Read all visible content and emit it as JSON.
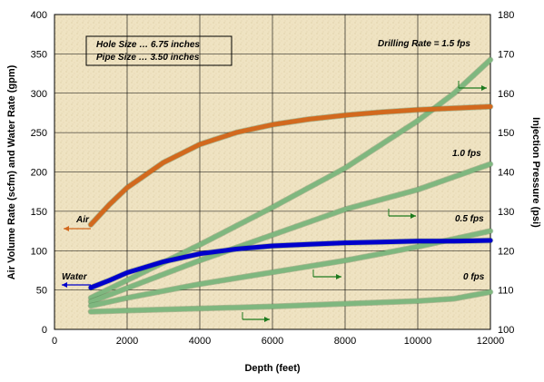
{
  "chart_data": {
    "type": "line",
    "xlabel": "Depth (feet)",
    "ylabel_left": "Air Volume Rate (scfm) and Water Rate (gpm)",
    "ylabel_right": "Injection Pressure (psi)",
    "xlim": [
      0,
      12000
    ],
    "ylim_left": [
      0,
      400
    ],
    "ylim_right": [
      100,
      180
    ],
    "x_ticks": [
      "0",
      "2000",
      "4000",
      "6000",
      "8000",
      "10000",
      "12000"
    ],
    "y_ticks_left": [
      "0",
      "50",
      "100",
      "150",
      "200",
      "250",
      "300",
      "350",
      "400"
    ],
    "y_ticks_right": [
      "100",
      "110",
      "120",
      "130",
      "140",
      "150",
      "160",
      "170",
      "180"
    ],
    "grid": true,
    "info_box": {
      "line1": "Hole Size  … 6.75 inches",
      "line2": "Pipe Size  … 3.50 inches"
    },
    "series": [
      {
        "name": "Air",
        "axis": "left",
        "color": "#d2691e",
        "x": [
          1000,
          1500,
          2000,
          3000,
          4000,
          5000,
          6000,
          7000,
          8000,
          9000,
          10000,
          11000,
          12000
        ],
        "y": [
          133,
          158,
          180,
          212,
          235,
          250,
          260,
          267,
          272,
          276,
          279,
          281,
          283
        ]
      },
      {
        "name": "Water",
        "axis": "left",
        "color": "#0000cc",
        "x": [
          1000,
          1500,
          2000,
          3000,
          4000,
          5000,
          6000,
          7000,
          8000,
          9000,
          10000,
          11000,
          12000
        ],
        "y": [
          53,
          62,
          72,
          86,
          96,
          102,
          106,
          108,
          110,
          111,
          112,
          112,
          113
        ]
      },
      {
        "name": "Drilling Rate =  1.5 fps",
        "axis": "right",
        "color": "#7fb77f",
        "x": [
          1000,
          2000,
          4000,
          6000,
          8000,
          10000,
          11000,
          12000
        ],
        "y": [
          108,
          112.5,
          121.5,
          131,
          141,
          153,
          160,
          168.5
        ]
      },
      {
        "name": "1.0 fps",
        "axis": "right",
        "color": "#7fb77f",
        "x": [
          1000,
          2000,
          4000,
          6000,
          8000,
          10000,
          12000
        ],
        "y": [
          107,
          110.5,
          117.5,
          124,
          130.5,
          135.5,
          142
        ]
      },
      {
        "name": "0.5 fps",
        "axis": "right",
        "color": "#7fb77f",
        "x": [
          1000,
          2000,
          4000,
          6000,
          8000,
          10000,
          12000
        ],
        "y": [
          106,
          108,
          111.5,
          114.5,
          117.5,
          121,
          125
        ]
      },
      {
        "name": "0 fps",
        "axis": "right",
        "color": "#7fb77f",
        "x": [
          1000,
          2000,
          4000,
          6000,
          8000,
          10000,
          11000,
          12000
        ],
        "y": [
          104.5,
          104.8,
          105.3,
          105.8,
          106.5,
          107.2,
          107.8,
          109.5
        ]
      }
    ],
    "annotations": [
      {
        "text": "Air",
        "series": "Air"
      },
      {
        "text": "Water",
        "series": "Water"
      },
      {
        "text": "Drilling Rate =  1.5 fps",
        "series": "Drilling Rate =  1.5 fps"
      },
      {
        "text": "1.0 fps",
        "series": "1.0 fps"
      },
      {
        "text": "0.5 fps",
        "series": "0.5 fps"
      },
      {
        "text": "0 fps",
        "series": "0 fps"
      }
    ]
  }
}
